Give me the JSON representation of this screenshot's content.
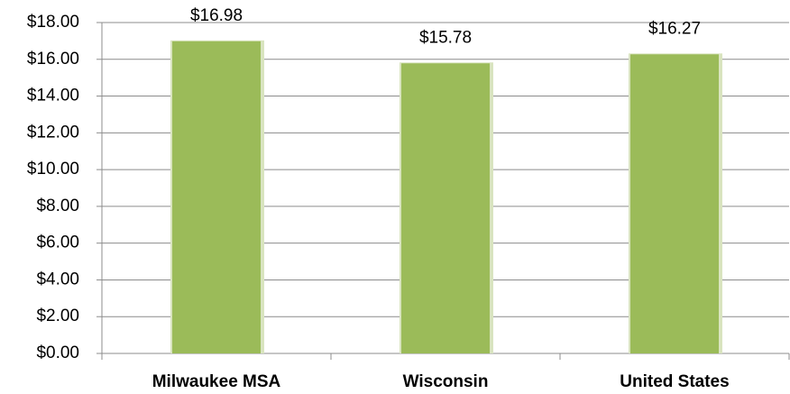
{
  "chart_data": {
    "type": "bar",
    "categories": [
      "Milwaukee MSA",
      "Wisconsin",
      "United States"
    ],
    "values": [
      16.98,
      15.78,
      16.27
    ],
    "value_labels": [
      "$16.98",
      "$15.78",
      "$16.27"
    ],
    "color": "#9bbb59",
    "ylim": [
      0,
      18
    ],
    "yticks": [
      {
        "value": 0,
        "label": "$0.00"
      },
      {
        "value": 2,
        "label": "$2.00"
      },
      {
        "value": 4,
        "label": "$4.00"
      },
      {
        "value": 6,
        "label": "$6.00"
      },
      {
        "value": 8,
        "label": "$8.00"
      },
      {
        "value": 10,
        "label": "$10.00"
      },
      {
        "value": 12,
        "label": "$12.00"
      },
      {
        "value": 14,
        "label": "$14.00"
      },
      {
        "value": 16,
        "label": "$16.00"
      },
      {
        "value": 18,
        "label": "$18.00"
      }
    ],
    "grid": true
  }
}
